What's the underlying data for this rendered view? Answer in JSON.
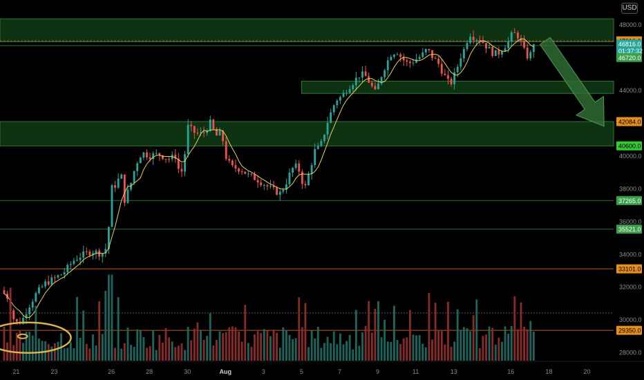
{
  "currency": "USD",
  "colors": {
    "background": "#000000",
    "up": "#26a69a",
    "down": "#ef5350",
    "volume_up": "#1b6b63",
    "volume_down": "#8e2d2b",
    "ma": "#e8d35a",
    "zone_fill": "#0f3a14",
    "zone_stroke": "#2f7a33",
    "support_line": "#2e6e33",
    "resistance_line": "#b85a28",
    "axis_text": "#8c8c8c",
    "arrow": "#2f6b34",
    "circle": "#d9b44a"
  },
  "chart_data": {
    "type": "candlestick",
    "title": "",
    "xlabel": "",
    "ylabel": "",
    "ylim": [
      27500,
      49500
    ],
    "y_ticks": [
      28000,
      30000,
      32000,
      34000,
      36000,
      38000,
      40000,
      42000,
      44000,
      46000,
      48000
    ],
    "x_ticks": [
      {
        "label": "21",
        "day": 0
      },
      {
        "label": "23",
        "day": 2
      },
      {
        "label": "26",
        "day": 5
      },
      {
        "label": "28",
        "day": 7
      },
      {
        "label": "30",
        "day": 9
      },
      {
        "label": "Aug",
        "day": 11
      },
      {
        "label": "3",
        "day": 13
      },
      {
        "label": "5",
        "day": 15
      },
      {
        "label": "7",
        "day": 17
      },
      {
        "label": "9",
        "day": 19
      },
      {
        "label": "11",
        "day": 21
      },
      {
        "label": "13",
        "day": 23
      },
      {
        "label": "16",
        "day": 26
      },
      {
        "label": "18",
        "day": 28
      },
      {
        "label": "20",
        "day": 30
      }
    ],
    "x_range": [
      -0.85,
      31.4
    ],
    "price_path": [
      [
        -0.8,
        31800
      ],
      [
        -0.4,
        31300
      ],
      [
        -0.2,
        30200
      ],
      [
        0.0,
        29800
      ],
      [
        0.3,
        29900
      ],
      [
        0.6,
        30700
      ],
      [
        1.0,
        31500
      ],
      [
        1.5,
        32200
      ],
      [
        2.0,
        32500
      ],
      [
        2.4,
        32800
      ],
      [
        2.6,
        33000
      ],
      [
        3.0,
        33600
      ],
      [
        3.4,
        33900
      ],
      [
        4.0,
        34200
      ],
      [
        4.5,
        34000
      ],
      [
        4.8,
        34500
      ],
      [
        5.0,
        38000
      ],
      [
        5.3,
        38300
      ],
      [
        5.5,
        39000
      ],
      [
        5.7,
        37300
      ],
      [
        6.0,
        38200
      ],
      [
        6.3,
        39500
      ],
      [
        6.6,
        40200
      ],
      [
        7.0,
        40000
      ],
      [
        7.5,
        40100
      ],
      [
        8.0,
        39800
      ],
      [
        8.4,
        40000
      ],
      [
        8.6,
        38800
      ],
      [
        8.8,
        39300
      ],
      [
        9.0,
        41800
      ],
      [
        9.4,
        41400
      ],
      [
        9.8,
        41300
      ],
      [
        10.2,
        42000
      ],
      [
        10.5,
        41200
      ],
      [
        10.8,
        41400
      ],
      [
        11.0,
        40000
      ],
      [
        11.3,
        39300
      ],
      [
        11.8,
        39200
      ],
      [
        12.2,
        38800
      ],
      [
        12.6,
        38600
      ],
      [
        13.0,
        38300
      ],
      [
        13.5,
        37900
      ],
      [
        13.9,
        37700
      ],
      [
        14.2,
        38400
      ],
      [
        14.5,
        39200
      ],
      [
        14.8,
        39400
      ],
      [
        15.0,
        38500
      ],
      [
        15.2,
        38100
      ],
      [
        15.4,
        39000
      ],
      [
        15.7,
        40300
      ],
      [
        16.0,
        40600
      ],
      [
        16.4,
        42200
      ],
      [
        16.8,
        43400
      ],
      [
        17.1,
        43600
      ],
      [
        17.4,
        44100
      ],
      [
        17.8,
        44600
      ],
      [
        18.1,
        45000
      ],
      [
        18.4,
        44800
      ],
      [
        18.6,
        44400
      ],
      [
        18.9,
        43800
      ],
      [
        19.1,
        44600
      ],
      [
        19.4,
        45500
      ],
      [
        19.7,
        46200
      ],
      [
        20.0,
        46400
      ],
      [
        20.3,
        45900
      ],
      [
        20.6,
        45600
      ],
      [
        20.9,
        45800
      ],
      [
        21.3,
        46100
      ],
      [
        21.6,
        46500
      ],
      [
        21.9,
        46000
      ],
      [
        22.2,
        45600
      ],
      [
        22.5,
        44900
      ],
      [
        22.8,
        44300
      ],
      [
        23.1,
        45100
      ],
      [
        23.4,
        46200
      ],
      [
        23.6,
        46600
      ],
      [
        23.8,
        47500
      ],
      [
        24.1,
        47200
      ],
      [
        24.4,
        47100
      ],
      [
        24.7,
        46700
      ],
      [
        25.0,
        46300
      ],
      [
        25.3,
        46200
      ],
      [
        25.6,
        46600
      ],
      [
        25.9,
        47000
      ],
      [
        26.1,
        47500
      ],
      [
        26.4,
        47300
      ],
      [
        26.7,
        46400
      ],
      [
        26.9,
        46000
      ],
      [
        27.1,
        46300
      ],
      [
        27.3,
        46816
      ]
    ],
    "volume_ylim": [
      0,
      100
    ],
    "volume_seed": 7,
    "lines": [
      {
        "price": 47010,
        "style": "dashed-orange"
      },
      {
        "price": 46720,
        "style": "solid-green"
      },
      {
        "price": 37265,
        "style": "solid-green"
      },
      {
        "price": 35521,
        "style": "solid-green"
      },
      {
        "price": 33101,
        "style": "solid-orange"
      },
      {
        "price": 29350,
        "style": "solid-orange"
      }
    ],
    "zones": [
      {
        "from": 46950,
        "to": 48350,
        "x_from": -0.85,
        "x_to": 31.4
      },
      {
        "from": 43800,
        "to": 44550,
        "x_from": 15.0,
        "x_to": 31.4
      },
      {
        "from": 40600,
        "to": 42084,
        "x_from": -0.85,
        "x_to": 31.4
      }
    ],
    "price_labels": [
      {
        "text": "47010.0",
        "price": 47010,
        "bg": "#e8901d",
        "fg": "#000000"
      },
      {
        "text": "46816.0",
        "price": 46816,
        "bg": "#26a69a",
        "fg": "#ffffff"
      },
      {
        "text": "01:37:32",
        "price": 46400,
        "bg": "#26a69a",
        "fg": "#ffffff"
      },
      {
        "text": "46720.0",
        "price": 45990,
        "bg": "#3b9f4a",
        "fg": "#ffffff"
      },
      {
        "text": "42084.0",
        "price": 42084,
        "bg": "#e8901d",
        "fg": "#000000"
      },
      {
        "text": "40600.0",
        "price": 40600,
        "bg": "#33cc33",
        "fg": "#000000"
      },
      {
        "text": "37265.0",
        "price": 37265,
        "bg": "#3b9f4a",
        "fg": "#ffffff"
      },
      {
        "text": "35521.0",
        "price": 35521,
        "bg": "#3b9f4a",
        "fg": "#ffffff"
      },
      {
        "text": "33101.0",
        "price": 33101,
        "bg": "#e8901d",
        "fg": "#000000"
      },
      {
        "text": "29350.0",
        "price": 29350,
        "bg": "#e8901d",
        "fg": "#000000"
      }
    ],
    "arrow": {
      "from_day": 27.8,
      "from_price": 47000,
      "to_day": 30.9,
      "to_price": 41800
    },
    "circle": {
      "day": -0.1,
      "price": 28900
    }
  }
}
